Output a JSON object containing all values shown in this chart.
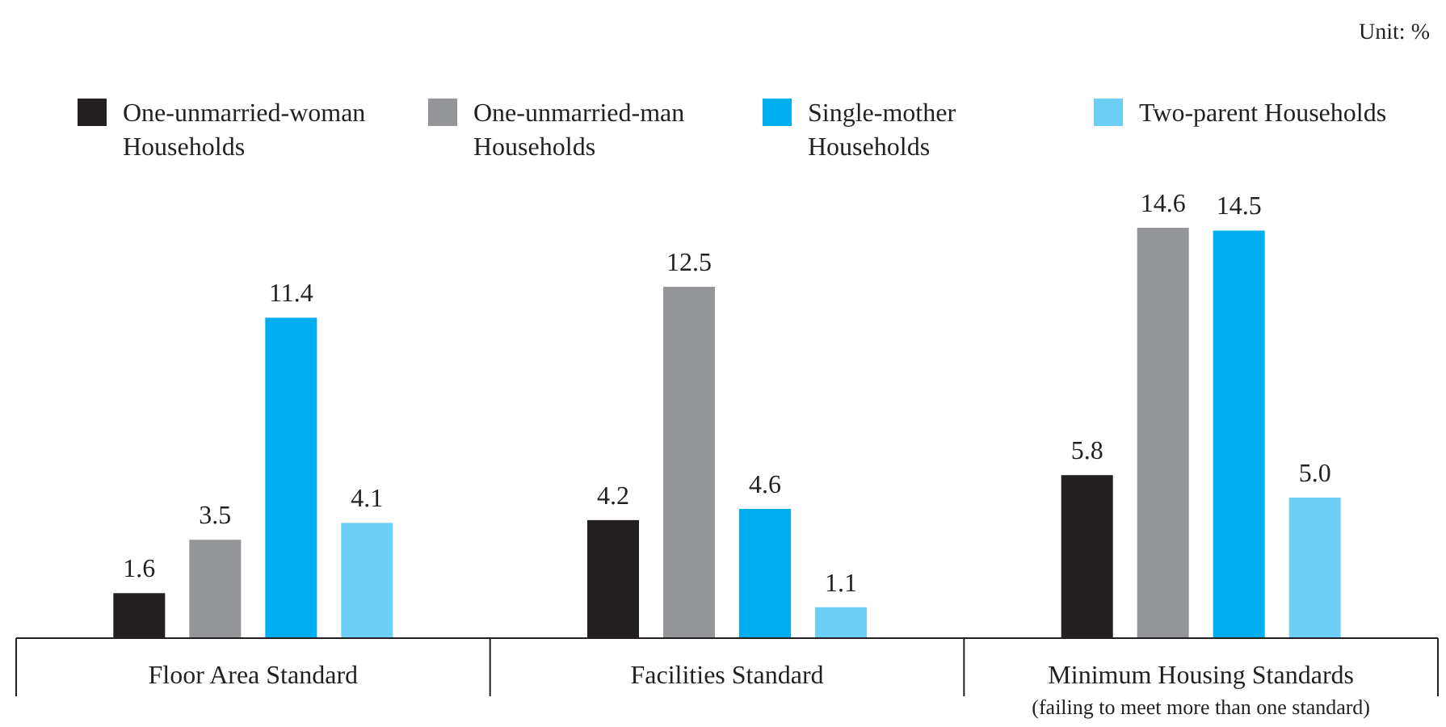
{
  "chart_data": {
    "type": "bar",
    "categories": [
      "Floor Area Standard",
      "Facilities Standard",
      "Minimum Housing Standards"
    ],
    "series": [
      {
        "name": "One-unmarried-woman Households",
        "color": "#231f20",
        "values": [
          1.6,
          4.2,
          5.8
        ]
      },
      {
        "name": "One-unmarried-man Households",
        "color": "#939598",
        "values": [
          3.5,
          12.5,
          14.6
        ]
      },
      {
        "name": "Single-mother Households",
        "color": "#00aeef",
        "values": [
          11.4,
          4.6,
          14.5
        ]
      },
      {
        "name": "Two-parent Households",
        "color": "#6dcff6",
        "values": [
          4.1,
          1.1,
          5.0
        ],
        "value_labels": [
          "4.1",
          "1.1",
          "5.0"
        ]
      }
    ],
    "tick_labels": "x",
    "data_labels": true,
    "legend": "top",
    "annotations": [
      "Unit: %",
      "(failing to meet more than one standard)"
    ]
  }
}
